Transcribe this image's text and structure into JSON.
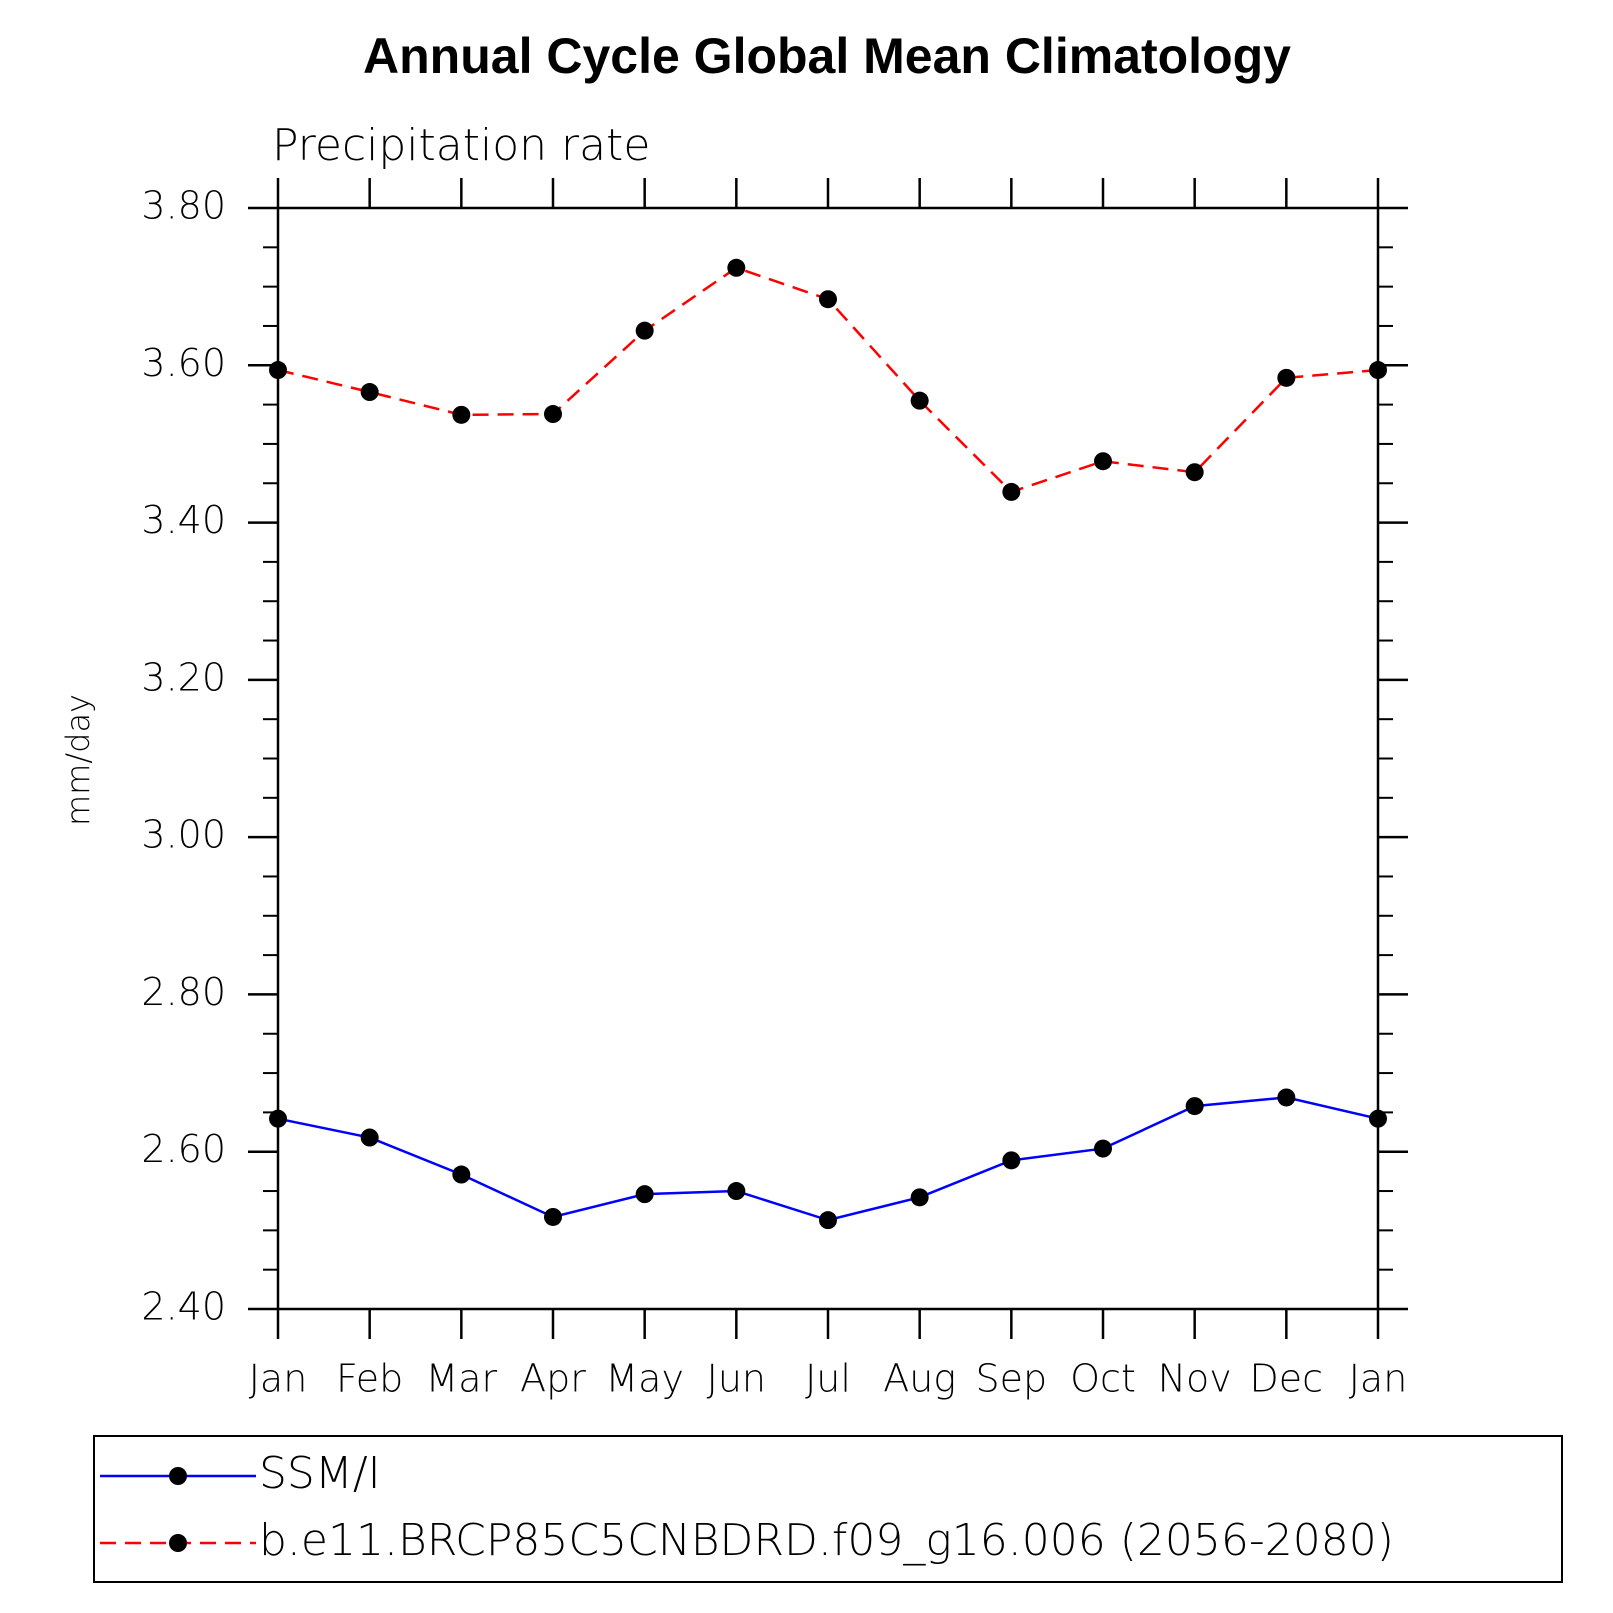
{
  "chart_data": {
    "type": "line",
    "title": "Annual Cycle Global Mean Climatology",
    "subtitle": "Precipitation rate",
    "y_label": "mm/day",
    "categories": [
      "Jan",
      "Feb",
      "Mar",
      "Apr",
      "May",
      "Jun",
      "Jul",
      "Aug",
      "Sep",
      "Oct",
      "Nov",
      "Dec",
      "Jan"
    ],
    "series": [
      {
        "name": "SSM/I",
        "color": "#0000ff",
        "dash": false,
        "values": [
          2.642,
          2.618,
          2.571,
          2.517,
          2.546,
          2.55,
          2.513,
          2.542,
          2.589,
          2.604,
          2.658,
          2.669,
          2.642
        ]
      },
      {
        "name": "b.e11.BRCP85C5CNBDRD.f09_g16.006 (2056-2080)",
        "color": "#ff0000",
        "dash": true,
        "values": [
          3.594,
          3.566,
          3.537,
          3.538,
          3.644,
          3.724,
          3.684,
          3.555,
          3.439,
          3.478,
          3.464,
          3.584,
          3.594
        ]
      }
    ],
    "ylim": [
      2.4,
      3.8
    ],
    "yticks": [
      {
        "value": 2.4,
        "label": "2.40"
      },
      {
        "value": 2.6,
        "label": "2.60"
      },
      {
        "value": 2.8,
        "label": "2.80"
      },
      {
        "value": 3.0,
        "label": "3.00"
      },
      {
        "value": 3.2,
        "label": "3.20"
      },
      {
        "value": 3.4,
        "label": "3.40"
      },
      {
        "value": 3.6,
        "label": "3.60"
      },
      {
        "value": 3.8,
        "label": "3.80"
      }
    ],
    "grid": false,
    "legend": "bottom"
  }
}
